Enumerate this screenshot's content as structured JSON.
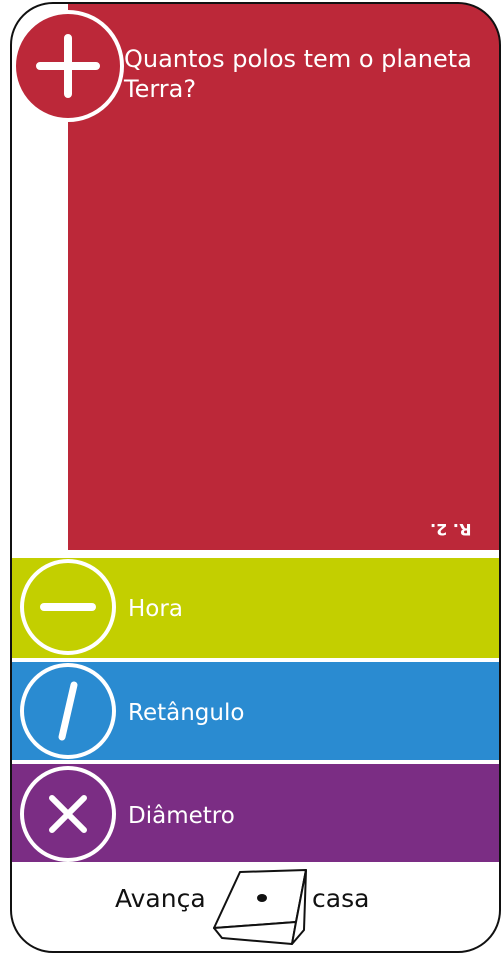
{
  "card": {
    "question": "Quantos polos tem o planeta Terra?",
    "answer": "R. 2.",
    "options": [
      "Hora",
      "Retângulo",
      "Diâmetro"
    ],
    "footer": {
      "before": "Avança",
      "after": "casa"
    }
  }
}
